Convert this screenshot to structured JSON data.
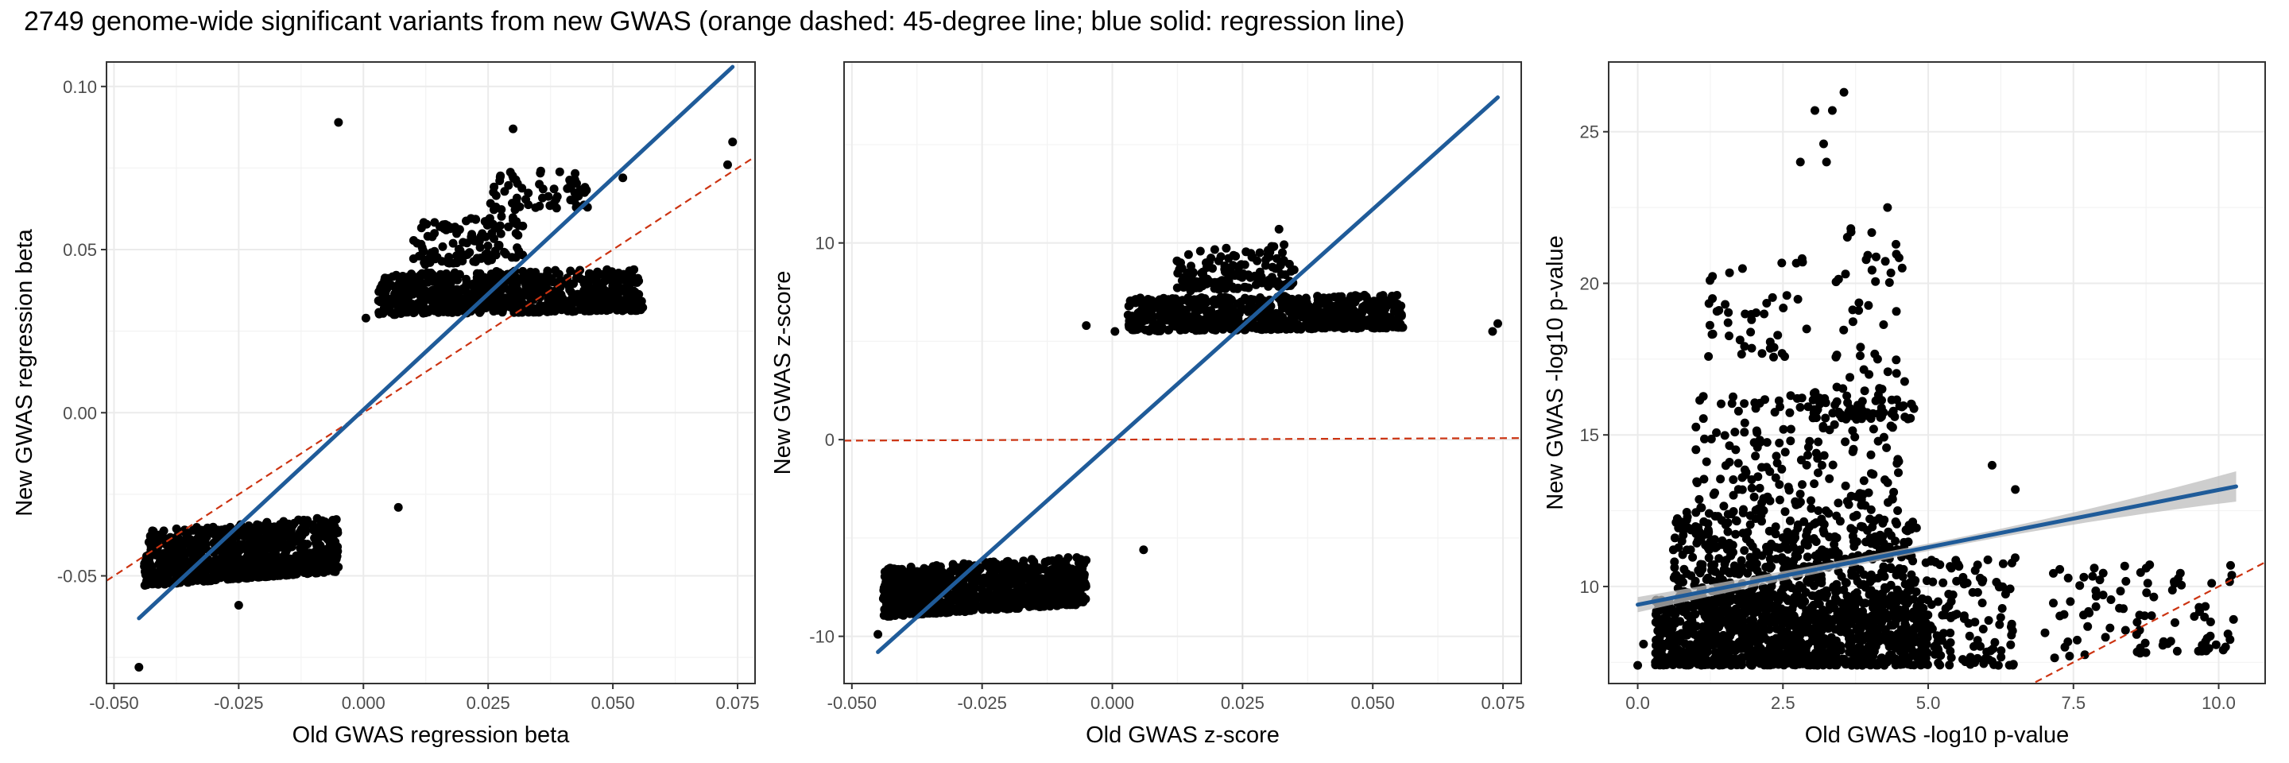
{
  "title": "2749 genome-wide significant variants from new GWAS (orange dashed: 45-degree line; blue solid: regression line)",
  "colors": {
    "points": "#000000",
    "regression": "#1f5b99",
    "identity": "#cc3311",
    "grid": "#ebebeb",
    "band": "#bdbdbd"
  },
  "chart_data": [
    {
      "type": "scatter",
      "xlabel": "Old GWAS regression beta",
      "ylabel": "New GWAS regression beta",
      "xlim": [
        -0.0515,
        0.0785
      ],
      "ylim": [
        -0.083,
        0.1075
      ],
      "xticks": [
        -0.05,
        -0.025,
        0.0,
        0.025,
        0.05,
        0.075
      ],
      "xtick_labels": [
        "-0.050",
        "-0.025",
        "0.000",
        "0.025",
        "0.050",
        "0.075"
      ],
      "yticks": [
        -0.05,
        0.0,
        0.05,
        0.1
      ],
      "ytick_labels": [
        "-0.05",
        "0.00",
        "0.05",
        "0.10"
      ],
      "grid": true,
      "regression_line": {
        "x": [
          -0.045,
          0.074
        ],
        "y": [
          -0.063,
          0.106
        ]
      },
      "identity_line": {
        "x": [
          -0.0515,
          0.0785
        ],
        "y": [
          -0.0515,
          0.0785
        ]
      },
      "clusters": [
        {
          "x": [
            -0.044,
            -0.005
          ],
          "y": [
            -0.053,
            -0.029
          ],
          "n": 900,
          "slant": 0.3
        },
        {
          "x": [
            0.003,
            0.056
          ],
          "y": [
            0.03,
            0.045
          ],
          "n": 700,
          "slant": 0.15
        },
        {
          "x": [
            0.01,
            0.032
          ],
          "y": [
            0.045,
            0.062
          ],
          "n": 120,
          "slant": 0.2
        },
        {
          "x": [
            0.025,
            0.045
          ],
          "y": [
            0.062,
            0.075
          ],
          "n": 60,
          "slant": 0.1
        }
      ],
      "outliers": [
        {
          "x": -0.045,
          "y": -0.078
        },
        {
          "x": -0.005,
          "y": 0.089
        },
        {
          "x": 0.007,
          "y": -0.029
        },
        {
          "x": 0.074,
          "y": 0.083
        },
        {
          "x": 0.073,
          "y": 0.076
        },
        {
          "x": 0.03,
          "y": 0.087
        },
        {
          "x": 0.052,
          "y": 0.072
        },
        {
          "x": 0.0005,
          "y": 0.029
        },
        {
          "x": -0.025,
          "y": -0.059
        }
      ]
    },
    {
      "type": "scatter",
      "xlabel": "Old GWAS z-score",
      "ylabel": "New GWAS z-score",
      "xlim": [
        -0.0515,
        0.0785
      ],
      "ylim": [
        -12.4,
        19.2
      ],
      "xticks": [
        -0.05,
        -0.025,
        0.0,
        0.025,
        0.05,
        0.075
      ],
      "xtick_labels": [
        "-0.050",
        "-0.025",
        "0.000",
        "0.025",
        "0.050",
        "0.075"
      ],
      "yticks": [
        -10,
        0,
        10
      ],
      "ytick_labels": [
        "-10",
        "0",
        "10"
      ],
      "grid": true,
      "regression_line": {
        "x": [
          -0.045,
          0.074
        ],
        "y": [
          -10.8,
          17.4
        ]
      },
      "identity_line": {
        "x": [
          -0.0515,
          0.0785
        ],
        "y": [
          -0.0515,
          0.0785
        ]
      },
      "clusters": [
        {
          "x": [
            -0.044,
            -0.005
          ],
          "y": [
            -9.0,
            -5.5
          ],
          "n": 900,
          "slant": 0.3
        },
        {
          "x": [
            0.003,
            0.056
          ],
          "y": [
            5.5,
            7.5
          ],
          "n": 700,
          "slant": 0.15
        },
        {
          "x": [
            0.012,
            0.035
          ],
          "y": [
            7.5,
            10.2
          ],
          "n": 150,
          "slant": 0.2
        }
      ],
      "outliers": [
        {
          "x": -0.045,
          "y": -9.9
        },
        {
          "x": -0.005,
          "y": 5.8
        },
        {
          "x": 0.0005,
          "y": 5.5
        },
        {
          "x": 0.006,
          "y": -5.6
        },
        {
          "x": 0.074,
          "y": 5.9
        },
        {
          "x": 0.073,
          "y": 5.5
        },
        {
          "x": 0.032,
          "y": 10.7
        }
      ]
    },
    {
      "type": "scatter",
      "xlabel": "Old GWAS -log10 p-value",
      "ylabel": "New GWAS -log10 p-value",
      "xlim": [
        -0.5,
        10.8
      ],
      "ylim": [
        6.8,
        27.3
      ],
      "xticks": [
        0,
        2.5,
        5,
        7.5,
        10
      ],
      "xtick_labels": [
        "0.0",
        "2.5",
        "5.0",
        "7.5",
        "10.0"
      ],
      "yticks": [
        10,
        15,
        20,
        25
      ],
      "ytick_labels": [
        "10",
        "15",
        "20",
        "25"
      ],
      "grid": true,
      "regression_line": {
        "x": [
          0.0,
          10.3
        ],
        "y": [
          9.4,
          13.3
        ]
      },
      "confidence_band_halfwidth": [
        0.25,
        0.12,
        0.5
      ],
      "identity_line": {
        "x": [
          6.3,
          10.8
        ],
        "y": [
          6.3,
          10.8
        ]
      },
      "clusters": [
        {
          "x": [
            0.3,
            5.0
          ],
          "y": [
            7.4,
            9.6
          ],
          "n": 1100,
          "slant": 0
        },
        {
          "x": [
            0.6,
            4.8
          ],
          "y": [
            9.6,
            12.5
          ],
          "n": 500,
          "slant": 0
        },
        {
          "x": [
            1.0,
            4.5
          ],
          "y": [
            12.5,
            16.5
          ],
          "n": 180,
          "slant": 0
        },
        {
          "x": [
            4.8,
            6.5
          ],
          "y": [
            7.4,
            11.0
          ],
          "n": 120,
          "slant": 0
        },
        {
          "x": [
            7.0,
            10.3
          ],
          "y": [
            7.6,
            11.2
          ],
          "n": 90,
          "slant": 0.15
        },
        {
          "x": [
            3.0,
            4.8
          ],
          "y": [
            15.5,
            16.3
          ],
          "n": 50,
          "slant": 0
        },
        {
          "x": [
            1.2,
            3.0
          ],
          "y": [
            17.5,
            21.0
          ],
          "n": 45,
          "slant": 0
        },
        {
          "x": [
            3.4,
            4.6
          ],
          "y": [
            16.5,
            22.0
          ],
          "n": 45,
          "slant": 0
        }
      ],
      "outliers": [
        {
          "x": 2.8,
          "y": 24.0
        },
        {
          "x": 3.05,
          "y": 25.7
        },
        {
          "x": 3.2,
          "y": 24.6
        },
        {
          "x": 3.35,
          "y": 25.7
        },
        {
          "x": 3.55,
          "y": 26.3
        },
        {
          "x": 3.25,
          "y": 24.0
        },
        {
          "x": 4.3,
          "y": 22.5
        },
        {
          "x": 6.1,
          "y": 14.0
        },
        {
          "x": 6.5,
          "y": 13.2
        },
        {
          "x": 0.1,
          "y": 8.1
        },
        {
          "x": 0.0,
          "y": 7.4
        }
      ]
    }
  ]
}
